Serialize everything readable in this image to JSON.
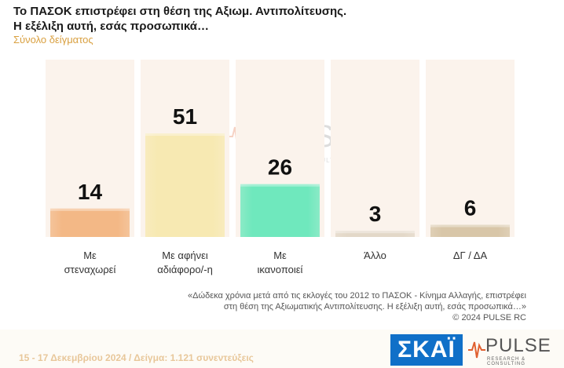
{
  "title_lines": [
    "Το ΠΑΣΟΚ επιστρέφει στη θέση της Αξιωμ. Αντιπολίτευσης.",
    "Η εξέλιξη αυτή, εσάς προσωπικά…"
  ],
  "subtitle": "Σύνολο δείγματος",
  "chart_data": {
    "type": "bar",
    "categories": [
      [
        "Με",
        "στεναχωρεί"
      ],
      [
        "Με αφήνει",
        "αδιάφορο/-η"
      ],
      [
        "Με",
        "ικανοποιεί"
      ],
      [
        "Άλλο"
      ],
      [
        "ΔΓ / ΔΑ"
      ]
    ],
    "values": [
      14,
      51,
      26,
      3,
      6
    ],
    "value_labels": [
      "14",
      "51",
      "26",
      "3",
      "6"
    ],
    "ylim": [
      0,
      60
    ],
    "grid": false,
    "colors": [
      "#f3b886",
      "#f7e9b2",
      "#6fe8bd",
      "#e3d8c8",
      "#d8c6a8"
    ],
    "background_column_color": "#fbf3ec"
  },
  "note_lines": [
    "«Δώδεκα χρόνια μετά από τις εκλογές του 2012 το ΠΑΣΟΚ - Κίνημα Αλλαγής, επιστρέφει",
    "στη θέση της Αξιωματικής Αντιπολίτευσης. Η εξέλιξη αυτή, εσάς προσωπικά…»",
    "©  2024  PULSE RC"
  ],
  "footer": "15 - 17 Δεκεμβρίου 2024  /  Δείγμα:  1.121 συνεντεύξεις",
  "logos": {
    "skai": "ΣΚΑΪ",
    "pulse": "PULSE",
    "pulse_sub": "RESEARCH & CONSULTING"
  }
}
